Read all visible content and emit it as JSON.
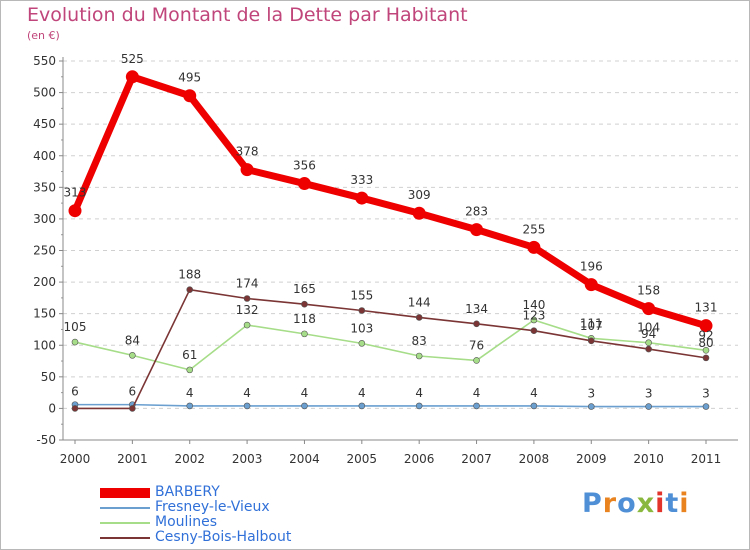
{
  "header": {
    "title": "Evolution du Montant de la Dette par Habitant",
    "unit": "(en €)"
  },
  "logo": {
    "text": "Proxiti",
    "letter_colors": [
      "#4f8fd6",
      "#e8831f",
      "#4f8fd6",
      "#8ab83e",
      "#e2342b",
      "#4f8fd6",
      "#e8831f"
    ]
  },
  "chart_data": {
    "type": "line",
    "title": "Evolution du Montant de la Dette par Habitant",
    "ylabel": "(en €)",
    "xlabel": "",
    "x": [
      "2000",
      "2001",
      "2002",
      "2003",
      "2004",
      "2005",
      "2006",
      "2007",
      "2008",
      "2009",
      "2010",
      "2011"
    ],
    "ylim": [
      -50,
      550
    ],
    "yticks": [
      "-50",
      "0",
      "50",
      "100",
      "150",
      "200",
      "250",
      "300",
      "350",
      "400",
      "450",
      "500",
      "550"
    ],
    "grid": "horizontal dashed",
    "legend_position": "bottom-left",
    "series": [
      {
        "name": "BARBERY",
        "color": "#ee0000",
        "values": [
          313,
          525,
          495,
          378,
          356,
          333,
          309,
          283,
          255,
          196,
          158,
          131
        ],
        "labels": [
          "313",
          "525",
          "495",
          "378",
          "356",
          "333",
          "309",
          "283",
          "255",
          "196",
          "158",
          "131"
        ]
      },
      {
        "name": "Fresney-le-Vieux",
        "color": "#6a9fd0",
        "values": [
          6,
          6,
          4,
          4,
          4,
          4,
          4,
          4,
          4,
          3,
          3,
          3
        ],
        "labels": [
          "6",
          "6",
          "4",
          "4",
          "4",
          "4",
          "4",
          "4",
          "4",
          "3",
          "3",
          "3"
        ]
      },
      {
        "name": "Moulines",
        "color": "#a6dd88",
        "values": [
          105,
          84,
          61,
          132,
          118,
          103,
          83,
          76,
          140,
          111,
          104,
          92
        ],
        "labels": [
          "105",
          "84",
          "61",
          "132",
          "118",
          "103",
          "83",
          "76",
          "140",
          "111",
          "104",
          "92"
        ]
      },
      {
        "name": "Cesny-Bois-Halbout",
        "color": "#7b3535",
        "values": [
          0,
          0,
          188,
          174,
          165,
          155,
          144,
          134,
          123,
          107,
          94,
          80
        ],
        "labels": [
          "",
          "",
          "188",
          "174",
          "165",
          "155",
          "144",
          "134",
          "123",
          "107",
          "94",
          "80"
        ]
      }
    ]
  },
  "legend": {
    "items": [
      {
        "label": "BARBERY",
        "color": "#ee0000",
        "text_color": "#3070d8"
      },
      {
        "label": "Fresney-le-Vieux",
        "color": "#6a9fd0",
        "text_color": "#3070d8"
      },
      {
        "label": "Moulines",
        "color": "#a6dd88",
        "text_color": "#3070d8"
      },
      {
        "label": "Cesny-Bois-Halbout",
        "color": "#7b3535",
        "text_color": "#3070d8"
      }
    ]
  }
}
